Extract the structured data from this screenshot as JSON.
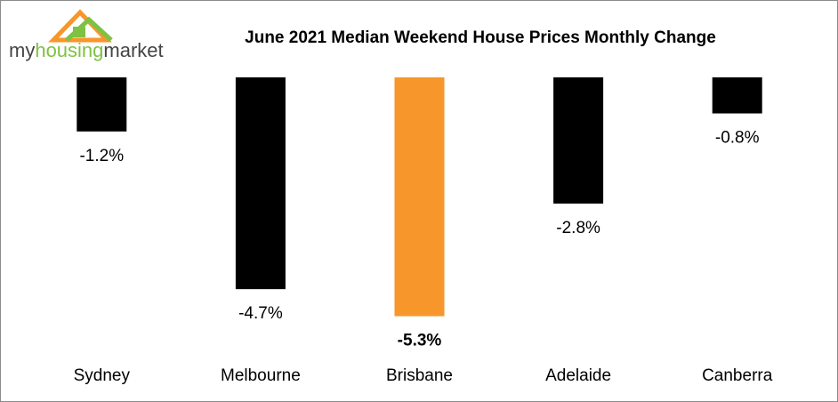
{
  "chart_data": {
    "type": "bar",
    "title": "June 2021 Median Weekend House Prices Monthly Change",
    "logo": {
      "text_a": "my",
      "text_b": "housing",
      "text_c": "market"
    },
    "categories": [
      "Sydney",
      "Melbourne",
      "Brisbane",
      "Adelaide",
      "Canberra"
    ],
    "values": [
      -1.2,
      -4.7,
      -5.3,
      -2.8,
      -0.8
    ],
    "value_labels": [
      "-1.2%",
      "-4.7%",
      "-5.3%",
      "-2.8%",
      "-0.8%"
    ],
    "colors": [
      "#000000",
      "#000000",
      "#f7962b",
      "#000000",
      "#000000"
    ],
    "highlight_color": "#f7962b",
    "ylim": [
      -6,
      0
    ]
  }
}
